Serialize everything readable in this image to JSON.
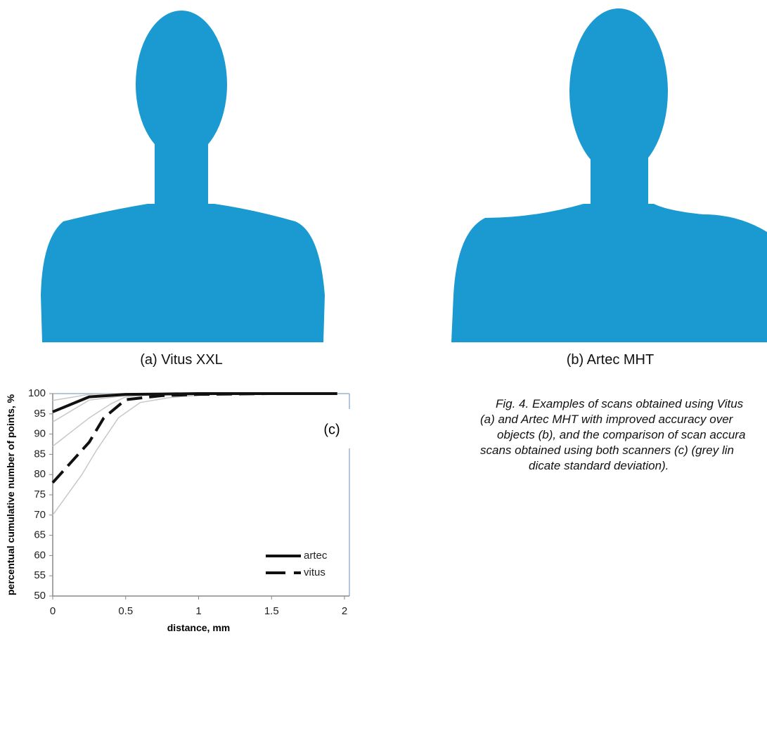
{
  "figure": {
    "panels": [
      {
        "caption": "(a) Vitus XXL"
      },
      {
        "caption": "(b) Artec MHT"
      }
    ],
    "caption_lines": [
      "Fig. 4. Examples of scans obtained using Vitus",
      "(a) and Artec MHT with improved accuracy over",
      "objects (b), and the comparison of scan accura",
      "scans obtained using both scanners (c) (grey lin",
      "dicate standard deviation)."
    ]
  },
  "chart_data": {
    "type": "line",
    "annotation": "(c)",
    "x_label": "distance, mm",
    "y_label": "percentual cumulative number of points, %",
    "xlim": [
      0,
      2
    ],
    "xticks": [
      0,
      0.5,
      1,
      1.5,
      2
    ],
    "ylim": [
      50,
      100
    ],
    "yticks": [
      50,
      55,
      60,
      65,
      70,
      75,
      80,
      85,
      90,
      95,
      100
    ],
    "legend": "lower right",
    "series": [
      {
        "name": "artec",
        "color": "#111111",
        "line_style": "solid",
        "x": [
          0,
          0.25,
          0.5,
          0.75,
          1,
          1.25,
          1.5,
          1.75,
          1.95
        ],
        "values": [
          95.5,
          99.2,
          99.8,
          99.9,
          100,
          100,
          100,
          100,
          100
        ]
      },
      {
        "name": "vitus",
        "color": "#111111",
        "line_style": "dashed",
        "x": [
          0,
          0.25,
          0.35,
          0.5,
          0.75,
          1,
          1.25,
          1.5,
          1.75,
          1.95
        ],
        "values": [
          78,
          88,
          94,
          98.5,
          99.5,
          99.8,
          99.9,
          100,
          100,
          100
        ]
      }
    ],
    "std_lines": [
      {
        "color": "#c8c8c8",
        "x": [
          0,
          0.25,
          0.5,
          0.75,
          1
        ],
        "values": [
          98.3,
          99.8,
          100,
          100,
          100
        ]
      },
      {
        "color": "#c8c8c8",
        "x": [
          0,
          0.25,
          0.5,
          0.75,
          1,
          1.5
        ],
        "values": [
          93,
          98.4,
          99.5,
          99.8,
          99.9,
          100
        ]
      },
      {
        "color": "#c8c8c8",
        "x": [
          0,
          0.25,
          0.4,
          0.5,
          0.75,
          1
        ],
        "values": [
          87,
          94,
          97.5,
          99.2,
          99.9,
          100
        ]
      },
      {
        "color": "#c8c8c8",
        "x": [
          0,
          0.2,
          0.3,
          0.45,
          0.6,
          0.8,
          1,
          1.25
        ],
        "values": [
          70,
          80,
          86,
          94,
          97.8,
          99,
          99.6,
          100
        ]
      }
    ]
  }
}
